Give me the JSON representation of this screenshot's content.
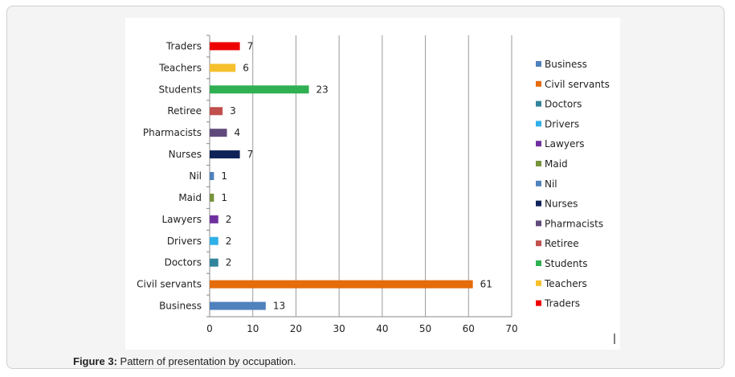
{
  "chart_data": {
    "type": "bar",
    "orientation": "horizontal",
    "categories": [
      "Traders",
      "Teachers",
      "Students",
      "Retiree",
      "Pharmacists",
      "Nurses",
      "Nil",
      "Maid",
      "Lawyers",
      "Drivers",
      "Doctors",
      "Civil servants",
      "Business"
    ],
    "values": [
      7,
      6,
      23,
      3,
      4,
      7,
      1,
      1,
      2,
      2,
      2,
      61,
      13
    ],
    "colors": [
      "#ee0000",
      "#f5c02c",
      "#2fb052",
      "#c0504d",
      "#604a7b",
      "#0f2258",
      "#4f81bd",
      "#77933c",
      "#7030a0",
      "#30b0e8",
      "#31849b",
      "#e46c0a",
      "#4f81bd"
    ],
    "xlim": [
      0,
      70
    ],
    "xticks": [
      0,
      10,
      20,
      30,
      40,
      50,
      60,
      70
    ],
    "grid": true,
    "legend": {
      "placement": "right",
      "entries": [
        "Business",
        "Civil servants",
        "Doctors",
        "Drivers",
        "Lawyers",
        "Maid",
        "Nil",
        "Nurses",
        "Pharmacists",
        "Retiree",
        "Students",
        "Teachers",
        "Traders"
      ],
      "colors": [
        "#4f81bd",
        "#e46c0a",
        "#31849b",
        "#30b0e8",
        "#7030a0",
        "#77933c",
        "#4f81bd",
        "#0f2258",
        "#604a7b",
        "#c0504d",
        "#2fb052",
        "#f5c02c",
        "#ee0000"
      ]
    },
    "title": "",
    "xlabel": "",
    "ylabel": ""
  },
  "caption": {
    "label": "Figure 3:",
    "text": " Pattern of presentation by occupation."
  }
}
